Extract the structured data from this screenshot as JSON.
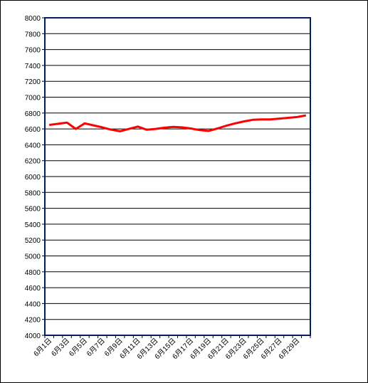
{
  "chart_data": {
    "type": "line",
    "title": "",
    "xlabel": "",
    "ylabel": "",
    "ylim": [
      4000,
      8000
    ],
    "y_ticks": [
      4000,
      4200,
      4400,
      4600,
      4800,
      5000,
      5200,
      5400,
      5600,
      5800,
      6000,
      6200,
      6400,
      6600,
      6800,
      7000,
      7200,
      7400,
      7600,
      7800,
      8000
    ],
    "grid": true,
    "legend": "none",
    "x_tick_labels": [
      "6月1日",
      "6月3日",
      "6月5日",
      "6月7日",
      "6月9日",
      "6月11日",
      "6月13日",
      "6月15日",
      "6月17日",
      "6月19日",
      "6月21日",
      "6月23日",
      "6月25日",
      "6月27日",
      "6月29日"
    ],
    "x": [
      "6月1日",
      "6月2日",
      "6月3日",
      "6月4日",
      "6月5日",
      "6月6日",
      "6月7日",
      "6月8日",
      "6月9日",
      "6月10日",
      "6月11日",
      "6月12日",
      "6月13日",
      "6月14日",
      "6月15日",
      "6月16日",
      "6月17日",
      "6月18日",
      "6月19日",
      "6月20日",
      "6月21日",
      "6月22日",
      "6月23日",
      "6月24日",
      "6月25日",
      "6月26日",
      "6月27日",
      "6月28日",
      "6月29日",
      "6月30日"
    ],
    "series": [
      {
        "color": "#ff0000",
        "values": [
          6650,
          6665,
          6680,
          6600,
          6670,
          6645,
          6620,
          6590,
          6570,
          6600,
          6630,
          6590,
          6600,
          6615,
          6625,
          6620,
          6605,
          6585,
          6575,
          6605,
          6640,
          6670,
          6695,
          6715,
          6720,
          6720,
          6730,
          6740,
          6750,
          6770
        ]
      }
    ],
    "colors": {
      "plot_border": "#001f5b",
      "gridline": "#000000",
      "series_line": "#ff0000"
    }
  }
}
